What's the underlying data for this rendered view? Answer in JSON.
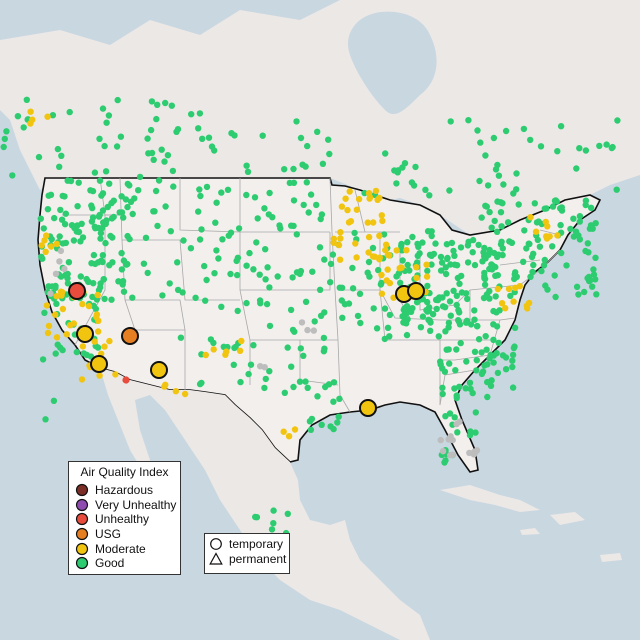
{
  "aqi_legend": {
    "title": "Air Quality Index",
    "items": [
      {
        "label": "Hazardous",
        "color": "#7a2e26"
      },
      {
        "label": "Very Unhealthy",
        "color": "#8e4bb0"
      },
      {
        "label": "Unhealthy",
        "color": "#e74c3c"
      },
      {
        "label": "USG",
        "color": "#e67e22"
      },
      {
        "label": "Moderate",
        "color": "#f1c40f"
      },
      {
        "label": "Good",
        "color": "#2ecc71"
      }
    ]
  },
  "type_legend": {
    "items": [
      {
        "label": "temporary",
        "shape": "circle"
      },
      {
        "label": "permanent",
        "shape": "triangle"
      }
    ]
  },
  "map_colors": {
    "ocean": "#c9d7e1",
    "land": "#ece8e6",
    "us_fill": "#f2efed",
    "border": "#111111",
    "state_line": "#a9a9a9",
    "no_data_dot": "#bdbdbd"
  }
}
